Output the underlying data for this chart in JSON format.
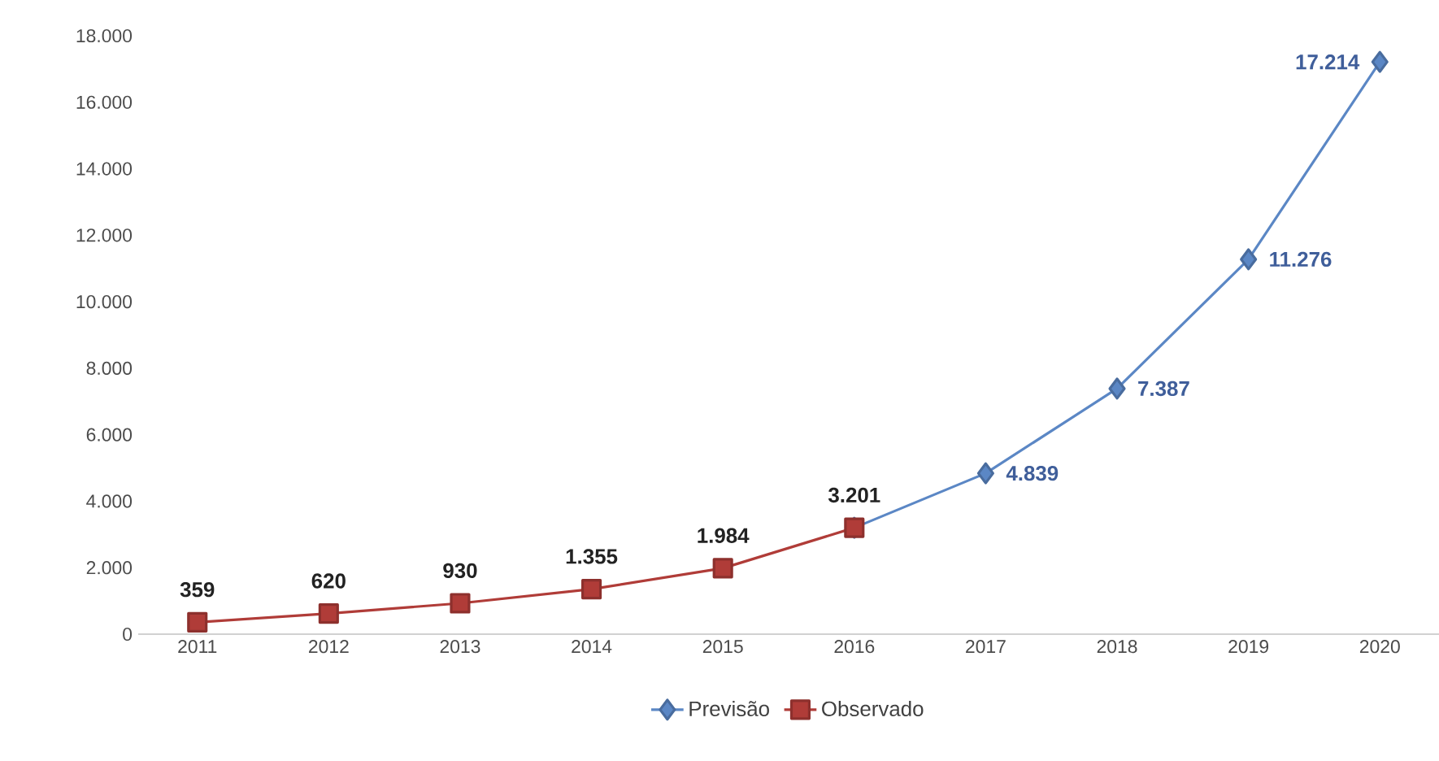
{
  "chart_data": {
    "type": "line",
    "categories": [
      "2011",
      "2012",
      "2013",
      "2014",
      "2015",
      "2016",
      "2017",
      "2018",
      "2019",
      "2020"
    ],
    "series": [
      {
        "name": "Previsão",
        "color": "#5b87c5",
        "marker": "diamond",
        "values": [
          null,
          null,
          null,
          null,
          null,
          3201,
          4839,
          7387,
          11276,
          17214
        ],
        "value_labels": [
          null,
          null,
          null,
          null,
          null,
          null,
          "4.839",
          "7.387",
          "11.276",
          "17.214"
        ]
      },
      {
        "name": "Observado",
        "color": "#b03c38",
        "marker": "square",
        "values": [
          359,
          620,
          930,
          1355,
          1984,
          3201,
          null,
          null,
          null,
          null
        ],
        "value_labels": [
          "359",
          "620",
          "930",
          "1.355",
          "1.984",
          "3.201",
          null,
          null,
          null,
          null
        ]
      }
    ],
    "ylim": [
      0,
      18000
    ],
    "yticks": [
      {
        "value": 0,
        "label": "0"
      },
      {
        "value": 2000,
        "label": "2.000"
      },
      {
        "value": 4000,
        "label": "4.000"
      },
      {
        "value": 6000,
        "label": "6.000"
      },
      {
        "value": 8000,
        "label": "8.000"
      },
      {
        "value": 10000,
        "label": "10.000"
      },
      {
        "value": 12000,
        "label": "12.000"
      },
      {
        "value": 14000,
        "label": "14.000"
      },
      {
        "value": 16000,
        "label": "16.000"
      },
      {
        "value": 18000,
        "label": "18.000"
      }
    ],
    "grid": false,
    "legend": "bottom",
    "line_style": "solid"
  }
}
